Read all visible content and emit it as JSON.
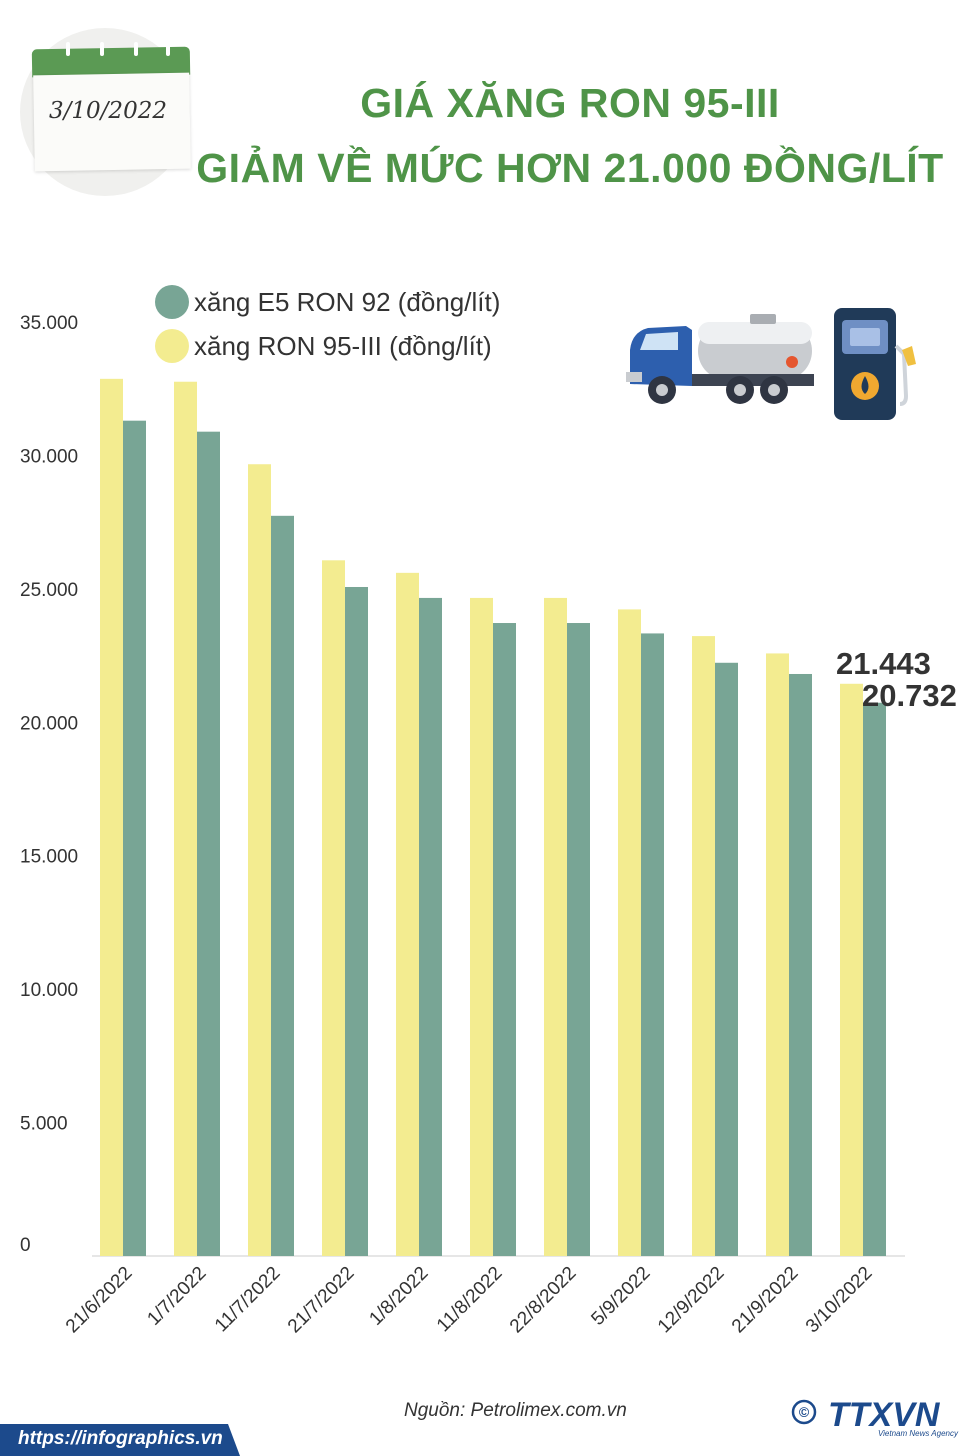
{
  "header": {
    "date": "3/10/2022",
    "title_line1": "GIÁ XĂNG RON 95-III",
    "title_line2": "GIẢM VỀ MỨC HƠN 21.000 ĐỒNG/LÍT"
  },
  "chart_data": {
    "type": "bar",
    "categories": [
      "21/6/2022",
      "1/7/2022",
      "11/7/2022",
      "21/7/2022",
      "1/8/2022",
      "11/8/2022",
      "22/8/2022",
      "5/9/2022",
      "12/9/2022",
      "21/9/2022",
      "3/10/2022"
    ],
    "series": [
      {
        "name": "xăng RON 95-III (đồng/lít)",
        "color": "#f3ec90",
        "values": [
          32870,
          32762,
          29670,
          26070,
          25600,
          24660,
          24660,
          24230,
          23230,
          22580,
          21443
        ]
      },
      {
        "name": "xăng E5 RON 92 (đồng/lít)",
        "color": "#78a595",
        "values": [
          31302,
          30890,
          27737,
          25070,
          24660,
          23720,
          23720,
          23330,
          22230,
          21810,
          20732
        ]
      }
    ],
    "legend": [
      {
        "label": "xăng E5 RON 92 (đồng/lít)",
        "color": "#78a595"
      },
      {
        "label": "xăng RON 95-III (đồng/lít)",
        "color": "#f3ec90"
      }
    ],
    "legend_position": "top-left",
    "ylim": [
      0,
      35000
    ],
    "yticks": [
      "0",
      "5.000",
      "10.000",
      "15.000",
      "20.000",
      "25.000",
      "30.000",
      "35.000"
    ],
    "yticks_values": [
      0,
      5000,
      10000,
      15000,
      20000,
      25000,
      30000,
      35000
    ],
    "annotations": [
      "21.443",
      "20.732"
    ],
    "grid": false
  },
  "footer": {
    "source": "Nguồn: Petrolimex.com.vn",
    "url": "https://infographics.vn",
    "logo_text": "TTXVN",
    "logo_sub": "Vietnam News Agency",
    "copyright_symbol": "©"
  }
}
